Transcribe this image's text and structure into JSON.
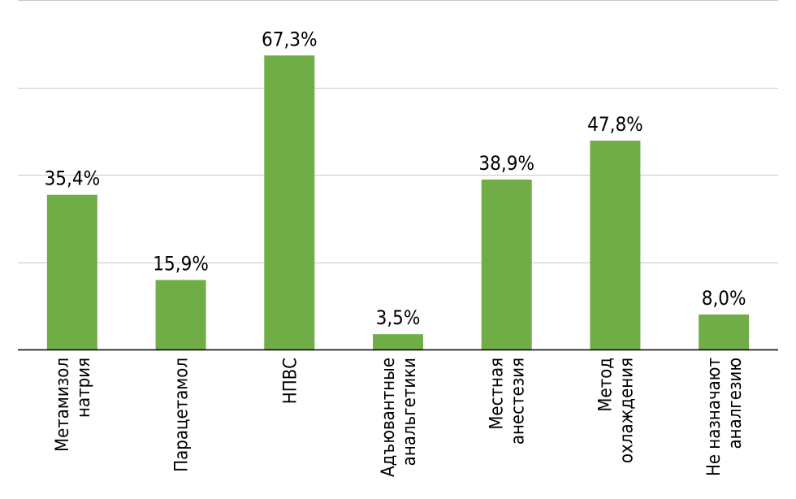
{
  "chart_data": {
    "type": "bar",
    "categories": [
      [
        "Метамизол",
        "натрия"
      ],
      [
        "Парацетамол"
      ],
      [
        "НПВС"
      ],
      [
        "Адъювантные",
        "анальгетики"
      ],
      [
        "Местная",
        "анестезия"
      ],
      [
        "Метод",
        "охлаждения"
      ],
      [
        "Не назначают",
        "аналгезию"
      ]
    ],
    "values": [
      35.4,
      15.9,
      67.3,
      3.5,
      38.9,
      47.8,
      8.0
    ],
    "value_labels": [
      "35,4%",
      "15,9%",
      "67,3%",
      "3,5%",
      "38,9%",
      "47,8%",
      "8,0%"
    ],
    "ylim": [
      0,
      80
    ],
    "gridline_count": 4,
    "grid": true,
    "bar_color": "#70ad47",
    "grid_color": "#c8c8c8",
    "axis_color": "#000000",
    "title": "",
    "xlabel": "",
    "ylabel": ""
  }
}
